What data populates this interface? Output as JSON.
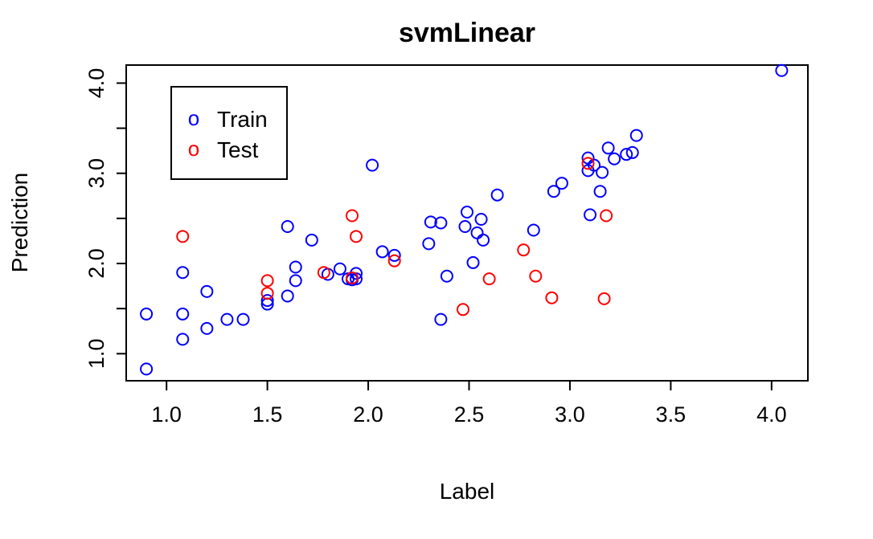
{
  "chart_data": {
    "type": "scatter",
    "title": "svmLinear",
    "xlabel": "Label",
    "ylabel": "Prediction",
    "xlim": [
      0.8,
      4.18
    ],
    "ylim": [
      0.7,
      4.2
    ],
    "xticks": [
      1.0,
      1.5,
      2.0,
      2.5,
      3.0,
      3.5,
      4.0
    ],
    "xtick_labels": [
      "1.0",
      "1.5",
      "2.0",
      "2.5",
      "3.0",
      "3.5",
      "4.0"
    ],
    "yticks": [
      1.0,
      1.5,
      2.0,
      2.5,
      3.0,
      3.5,
      4.0
    ],
    "ytick_labels": [
      "1.0",
      "",
      "2.0",
      "",
      "3.0",
      "",
      "4.0"
    ],
    "grid": false,
    "legend": {
      "position": "top-left",
      "symbol": "o"
    },
    "series": [
      {
        "name": "Train",
        "color": "#0000ff",
        "points": [
          [
            0.9,
            0.83
          ],
          [
            0.9,
            1.44
          ],
          [
            1.08,
            1.16
          ],
          [
            1.08,
            1.44
          ],
          [
            1.08,
            1.9
          ],
          [
            1.2,
            1.28
          ],
          [
            1.2,
            1.69
          ],
          [
            1.3,
            1.38
          ],
          [
            1.38,
            1.38
          ],
          [
            1.5,
            1.55
          ],
          [
            1.5,
            1.59
          ],
          [
            1.6,
            1.64
          ],
          [
            1.6,
            2.41
          ],
          [
            1.64,
            1.81
          ],
          [
            1.64,
            1.96
          ],
          [
            1.72,
            2.26
          ],
          [
            1.8,
            1.88
          ],
          [
            1.86,
            1.94
          ],
          [
            1.9,
            1.83
          ],
          [
            1.92,
            1.82
          ],
          [
            1.94,
            1.89
          ],
          [
            1.94,
            1.83
          ],
          [
            2.02,
            3.09
          ],
          [
            2.07,
            2.13
          ],
          [
            2.13,
            2.09
          ],
          [
            2.3,
            2.22
          ],
          [
            2.31,
            2.46
          ],
          [
            2.36,
            2.45
          ],
          [
            2.36,
            1.38
          ],
          [
            2.39,
            1.86
          ],
          [
            2.48,
            2.41
          ],
          [
            2.49,
            2.57
          ],
          [
            2.52,
            2.01
          ],
          [
            2.54,
            2.34
          ],
          [
            2.56,
            2.49
          ],
          [
            2.57,
            2.26
          ],
          [
            2.64,
            2.76
          ],
          [
            2.82,
            2.37
          ],
          [
            2.92,
            2.8
          ],
          [
            2.96,
            2.89
          ],
          [
            3.09,
            3.17
          ],
          [
            3.09,
            3.03
          ],
          [
            3.1,
            2.54
          ],
          [
            3.12,
            3.09
          ],
          [
            3.15,
            2.8
          ],
          [
            3.16,
            3.01
          ],
          [
            3.19,
            3.28
          ],
          [
            3.22,
            3.16
          ],
          [
            3.28,
            3.21
          ],
          [
            3.31,
            3.23
          ],
          [
            3.33,
            3.42
          ],
          [
            4.05,
            4.14
          ]
        ]
      },
      {
        "name": "Test",
        "color": "#ff0000",
        "points": [
          [
            1.08,
            2.3
          ],
          [
            1.5,
            1.67
          ],
          [
            1.5,
            1.81
          ],
          [
            1.78,
            1.9
          ],
          [
            1.92,
            2.53
          ],
          [
            1.92,
            1.84
          ],
          [
            1.94,
            2.3
          ],
          [
            2.13,
            2.03
          ],
          [
            2.47,
            1.49
          ],
          [
            2.6,
            1.83
          ],
          [
            2.77,
            2.15
          ],
          [
            2.83,
            1.86
          ],
          [
            2.91,
            1.62
          ],
          [
            3.09,
            3.11
          ],
          [
            3.17,
            1.61
          ],
          [
            3.18,
            2.53
          ]
        ]
      }
    ]
  }
}
